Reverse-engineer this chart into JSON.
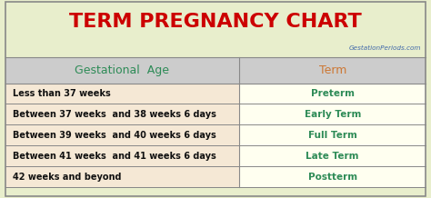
{
  "title": "TERM PREGNANCY CHART",
  "title_color": "#cc0000",
  "title_fontsize": 16,
  "watermark": "GestationPeriods.com",
  "watermark_color": "#4169aa",
  "header": [
    "Gestational  Age",
    "Term"
  ],
  "header_color_left": "#2e8b57",
  "header_color_right": "#cc7733",
  "header_bg": "#cccccc",
  "rows": [
    [
      "Less than 37 weeks",
      "Preterm"
    ],
    [
      "Between 37 weeks  and 38 weeks 6 days",
      "Early Term"
    ],
    [
      "Between 39 weeks  and 40 weeks 6 days",
      "Full Term"
    ],
    [
      "Between 41 weeks  and 41 weeks 6 days",
      "Late Term"
    ],
    [
      "42 weeks and beyond",
      "Postterm"
    ]
  ],
  "row_left_bg": "#f5e8d5",
  "row_right_bg": "#fffff0",
  "term_color": "#2e8b57",
  "left_text_color": "#111111",
  "outer_bg": "#e8eecc",
  "border_color": "#888888",
  "col_split": 0.555,
  "figsize": [
    4.74,
    2.18
  ],
  "dpi": 100
}
